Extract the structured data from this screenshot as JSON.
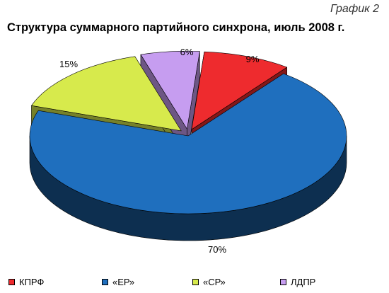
{
  "header": {
    "graph_label": "График 2"
  },
  "chart_data": {
    "type": "pie",
    "title": "Структура суммарного партийного синхрона, июль 2008 г.",
    "slices": [
      {
        "name": "КПРФ",
        "value": 9,
        "label": "9%",
        "color": "#ee2b2e",
        "exploded": true
      },
      {
        "name": "«ЕР»",
        "value": 70,
        "label": "70%",
        "color": "#1f6fbe",
        "exploded": false
      },
      {
        "name": "«СР»",
        "value": 15,
        "label": "15%",
        "color": "#d7ea4c",
        "exploded": true
      },
      {
        "name": "ЛДПР",
        "value": 6,
        "label": "6%",
        "color": "#c69df0",
        "exploded": true
      }
    ],
    "legend_position": "bottom"
  }
}
